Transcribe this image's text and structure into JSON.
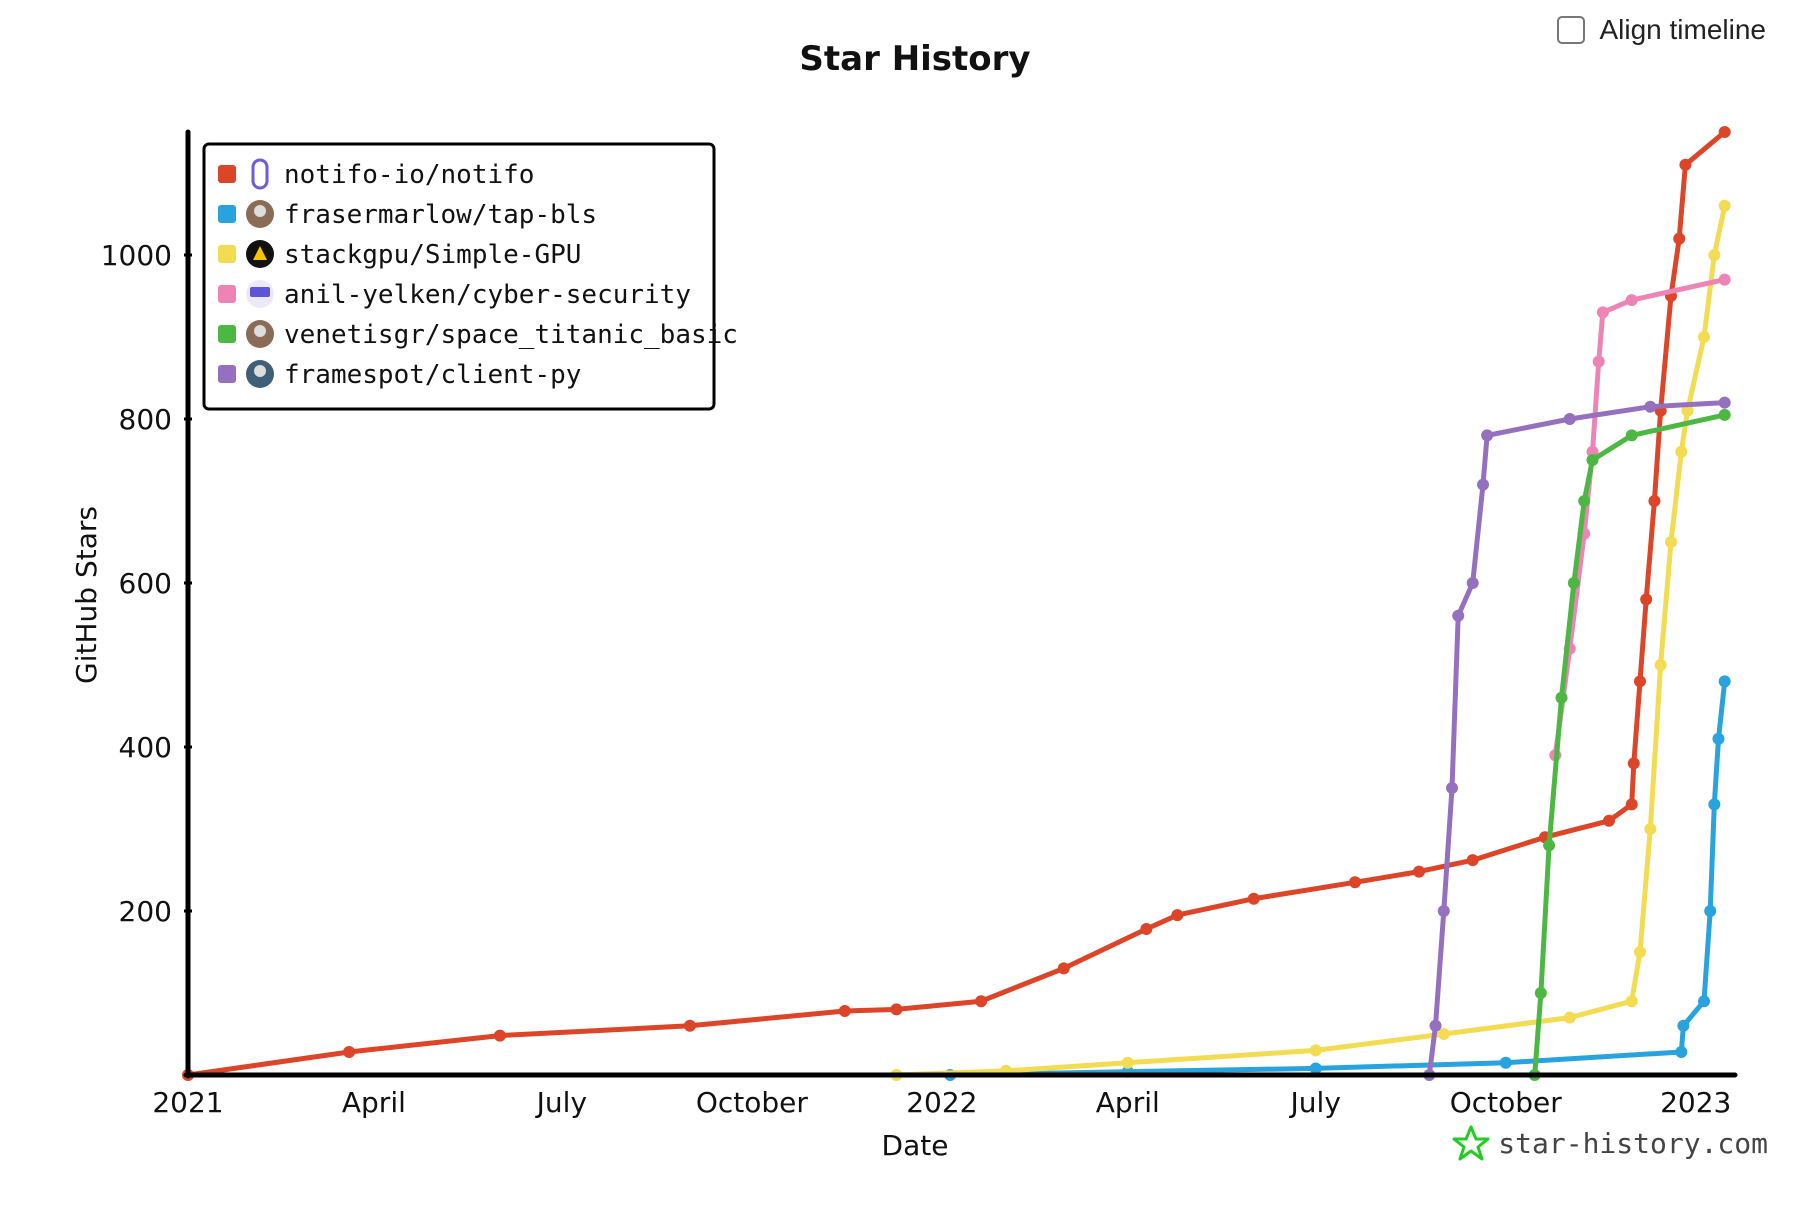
{
  "align_label": "Align timeline",
  "brand_text": "star-history.com",
  "chart_data": {
    "type": "line",
    "title": "Star History",
    "xlabel": "Date",
    "ylabel": "GitHub Stars",
    "x_tick_labels": [
      "2021",
      "April",
      "July",
      "October",
      "2022",
      "April",
      "July",
      "October",
      "2023"
    ],
    "x_tick_dates": [
      "2021-01-01",
      "2021-04-01",
      "2021-07-01",
      "2021-10-01",
      "2022-01-01",
      "2022-04-01",
      "2022-07-01",
      "2022-10-01",
      "2023-01-01"
    ],
    "y_ticks": [
      200,
      400,
      600,
      800,
      1000
    ],
    "xlim": [
      "2021-01-01",
      "2023-01-20"
    ],
    "ylim": [
      0,
      1150
    ],
    "legend_position": "top-left",
    "series": [
      {
        "name": "notifo-io/notifo",
        "color": "#dd4528",
        "icon": "notifo-logo",
        "points": [
          [
            "2021-01-01",
            0
          ],
          [
            "2021-03-20",
            28
          ],
          [
            "2021-06-01",
            48
          ],
          [
            "2021-09-01",
            60
          ],
          [
            "2021-11-15",
            78
          ],
          [
            "2021-12-10",
            80
          ],
          [
            "2022-01-20",
            90
          ],
          [
            "2022-03-01",
            130
          ],
          [
            "2022-04-10",
            178
          ],
          [
            "2022-04-25",
            195
          ],
          [
            "2022-06-01",
            215
          ],
          [
            "2022-07-20",
            235
          ],
          [
            "2022-08-20",
            248
          ],
          [
            "2022-09-15",
            262
          ],
          [
            "2022-10-20",
            290
          ],
          [
            "2022-11-20",
            310
          ],
          [
            "2022-12-01",
            330
          ],
          [
            "2022-12-02",
            380
          ],
          [
            "2022-12-05",
            480
          ],
          [
            "2022-12-08",
            580
          ],
          [
            "2022-12-12",
            700
          ],
          [
            "2022-12-15",
            810
          ],
          [
            "2022-12-20",
            950
          ],
          [
            "2022-12-24",
            1020
          ],
          [
            "2022-12-27",
            1110
          ],
          [
            "2023-01-15",
            1150
          ]
        ]
      },
      {
        "name": "frasermarlow/tap-bls",
        "color": "#28a3dd",
        "icon": "avatar",
        "points": [
          [
            "2022-01-05",
            0
          ],
          [
            "2022-04-01",
            4
          ],
          [
            "2022-07-01",
            8
          ],
          [
            "2022-10-01",
            15
          ],
          [
            "2022-12-25",
            28
          ],
          [
            "2022-12-26",
            60
          ],
          [
            "2023-01-05",
            90
          ],
          [
            "2023-01-08",
            200
          ],
          [
            "2023-01-10",
            330
          ],
          [
            "2023-01-12",
            410
          ],
          [
            "2023-01-15",
            480
          ]
        ]
      },
      {
        "name": "stackgpu/Simple-GPU",
        "color": "#f3db52",
        "icon": "stackgpu-logo",
        "points": [
          [
            "2021-12-10",
            0
          ],
          [
            "2022-02-01",
            5
          ],
          [
            "2022-04-01",
            15
          ],
          [
            "2022-07-01",
            30
          ],
          [
            "2022-09-01",
            50
          ],
          [
            "2022-11-01",
            70
          ],
          [
            "2022-12-01",
            90
          ],
          [
            "2022-12-05",
            150
          ],
          [
            "2022-12-10",
            300
          ],
          [
            "2022-12-15",
            500
          ],
          [
            "2022-12-20",
            650
          ],
          [
            "2022-12-25",
            760
          ],
          [
            "2022-12-28",
            810
          ],
          [
            "2023-01-05",
            900
          ],
          [
            "2023-01-10",
            1000
          ],
          [
            "2023-01-15",
            1060
          ]
        ]
      },
      {
        "name": "anil-yelken/cyber-security",
        "color": "#ed84b5",
        "icon": "anil-logo",
        "points": [
          [
            "2022-10-25",
            390
          ],
          [
            "2022-11-01",
            520
          ],
          [
            "2022-11-08",
            660
          ],
          [
            "2022-11-12",
            760
          ],
          [
            "2022-11-15",
            870
          ],
          [
            "2022-11-17",
            930
          ],
          [
            "2022-12-01",
            945
          ],
          [
            "2023-01-15",
            970
          ]
        ]
      },
      {
        "name": "venetisgr/space_titanic_basic",
        "color": "#4cb843",
        "icon": "avatar",
        "points": [
          [
            "2022-10-15",
            0
          ],
          [
            "2022-10-18",
            100
          ],
          [
            "2022-10-22",
            280
          ],
          [
            "2022-10-28",
            460
          ],
          [
            "2022-11-03",
            600
          ],
          [
            "2022-11-08",
            700
          ],
          [
            "2022-11-12",
            750
          ],
          [
            "2022-12-01",
            780
          ],
          [
            "2023-01-15",
            805
          ]
        ]
      },
      {
        "name": "framespot/client-py",
        "color": "#9570bf",
        "icon": "avatar",
        "points": [
          [
            "2022-08-25",
            0
          ],
          [
            "2022-08-28",
            60
          ],
          [
            "2022-09-01",
            200
          ],
          [
            "2022-09-05",
            350
          ],
          [
            "2022-09-08",
            560
          ],
          [
            "2022-09-15",
            600
          ],
          [
            "2022-09-20",
            720
          ],
          [
            "2022-09-22",
            780
          ],
          [
            "2022-11-01",
            800
          ],
          [
            "2022-12-10",
            815
          ],
          [
            "2023-01-15",
            820
          ]
        ]
      }
    ]
  }
}
